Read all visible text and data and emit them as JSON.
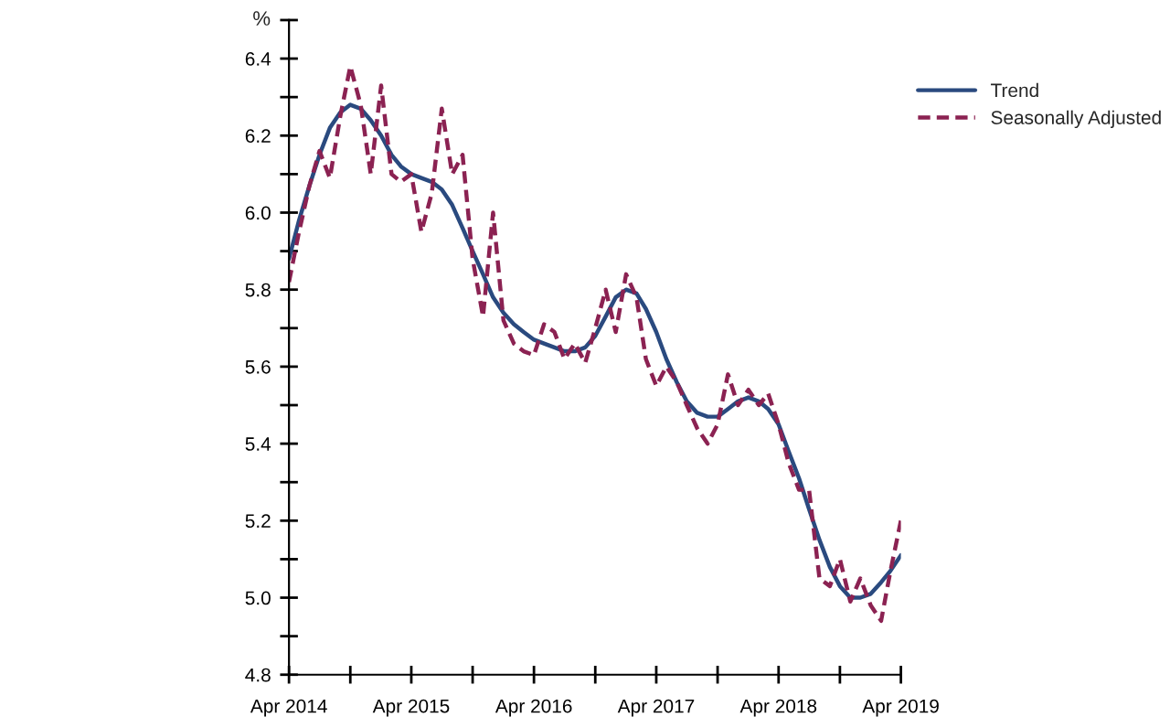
{
  "chart_data": {
    "type": "line",
    "ylabel": "%",
    "x": [
      "2014-04",
      "2014-05",
      "2014-06",
      "2014-07",
      "2014-08",
      "2014-09",
      "2014-10",
      "2014-11",
      "2014-12",
      "2015-01",
      "2015-02",
      "2015-03",
      "2015-04",
      "2015-05",
      "2015-06",
      "2015-07",
      "2015-08",
      "2015-09",
      "2015-10",
      "2015-11",
      "2015-12",
      "2016-01",
      "2016-02",
      "2016-03",
      "2016-04",
      "2016-05",
      "2016-06",
      "2016-07",
      "2016-08",
      "2016-09",
      "2016-10",
      "2016-11",
      "2016-12",
      "2017-01",
      "2017-02",
      "2017-03",
      "2017-04",
      "2017-05",
      "2017-06",
      "2017-07",
      "2017-08",
      "2017-09",
      "2017-10",
      "2017-11",
      "2017-12",
      "2018-01",
      "2018-02",
      "2018-03",
      "2018-04",
      "2018-05",
      "2018-06",
      "2018-07",
      "2018-08",
      "2018-09",
      "2018-10",
      "2018-11",
      "2018-12",
      "2019-01",
      "2019-02",
      "2019-03",
      "2019-04"
    ],
    "series": [
      {
        "name": "Trend",
        "color": "#2a4a7f",
        "line_style": "solid",
        "values": [
          5.88,
          5.98,
          6.07,
          6.15,
          6.22,
          6.26,
          6.28,
          6.27,
          6.24,
          6.2,
          6.15,
          6.12,
          6.1,
          6.09,
          6.08,
          6.06,
          6.02,
          5.96,
          5.9,
          5.84,
          5.78,
          5.74,
          5.71,
          5.69,
          5.67,
          5.66,
          5.65,
          5.64,
          5.64,
          5.65,
          5.68,
          5.73,
          5.78,
          5.8,
          5.79,
          5.75,
          5.69,
          5.62,
          5.56,
          5.51,
          5.48,
          5.47,
          5.47,
          5.49,
          5.51,
          5.52,
          5.51,
          5.49,
          5.45,
          5.38,
          5.31,
          5.23,
          5.15,
          5.08,
          5.03,
          5.0,
          5.0,
          5.01,
          5.04,
          5.07,
          5.11
        ]
      },
      {
        "name": "Seasonally Adjusted",
        "color": "#8b2252",
        "line_style": "dashed",
        "values": [
          5.82,
          5.95,
          6.07,
          6.16,
          6.09,
          6.25,
          6.38,
          6.28,
          6.1,
          6.33,
          6.1,
          6.08,
          6.1,
          5.95,
          6.05,
          6.27,
          6.1,
          6.15,
          5.88,
          5.73,
          6.0,
          5.72,
          5.66,
          5.64,
          5.63,
          5.71,
          5.69,
          5.62,
          5.66,
          5.61,
          5.7,
          5.8,
          5.69,
          5.84,
          5.78,
          5.62,
          5.55,
          5.6,
          5.56,
          5.5,
          5.44,
          5.4,
          5.45,
          5.58,
          5.5,
          5.54,
          5.5,
          5.53,
          5.45,
          5.35,
          5.28,
          5.28,
          5.05,
          5.03,
          5.1,
          4.99,
          5.05,
          4.98,
          4.94,
          5.07,
          5.2
        ]
      }
    ],
    "xlim": [
      "2014-04",
      "2019-04"
    ],
    "xticks": [
      {
        "value": "2014-04",
        "label": "Apr 2014"
      },
      {
        "value": "2014-10",
        "label": null
      },
      {
        "value": "2015-04",
        "label": "Apr 2015"
      },
      {
        "value": "2015-10",
        "label": null
      },
      {
        "value": "2016-04",
        "label": "Apr 2016"
      },
      {
        "value": "2016-10",
        "label": null
      },
      {
        "value": "2017-04",
        "label": "Apr 2017"
      },
      {
        "value": "2017-10",
        "label": null
      },
      {
        "value": "2018-04",
        "label": "Apr 2018"
      },
      {
        "value": "2018-10",
        "label": null
      },
      {
        "value": "2019-04",
        "label": "Apr 2019"
      }
    ],
    "ylim": [
      4.8,
      6.5
    ],
    "yticks": [
      4.8,
      {
        "value": 4.9,
        "label": null
      },
      {
        "value": 5.0,
        "label": "5.0"
      },
      {
        "value": 5.1,
        "label": null
      },
      5.2,
      {
        "value": 5.3,
        "label": null
      },
      5.4,
      {
        "value": 5.5,
        "label": null
      },
      5.6,
      {
        "value": 5.7,
        "label": null
      },
      5.8,
      {
        "value": 5.9,
        "label": null
      },
      {
        "value": 6.0,
        "label": "6.0"
      },
      {
        "value": 6.1,
        "label": null
      },
      6.2,
      {
        "value": 6.3,
        "label": null
      },
      6.4,
      {
        "value": 6.5,
        "label": null
      }
    ],
    "grid": false,
    "legend": "top right",
    "marker": "none"
  }
}
